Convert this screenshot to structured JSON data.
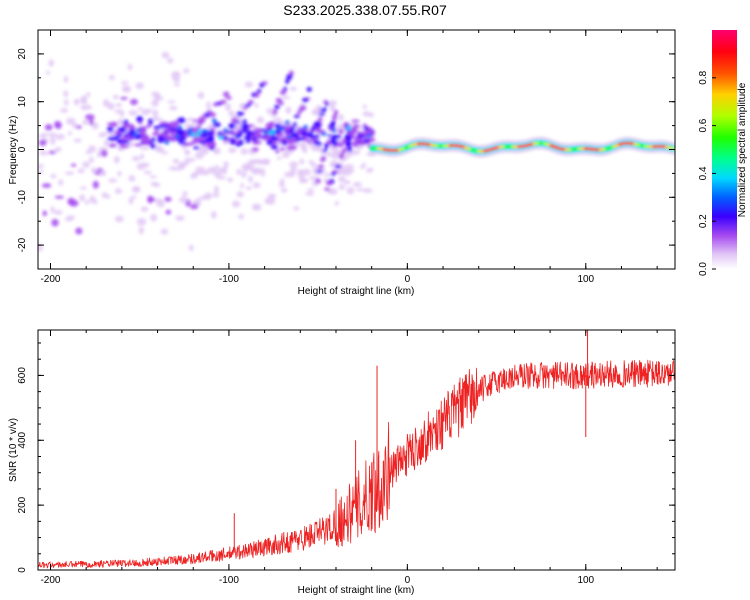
{
  "figure": {
    "title": "S233.2025.338.07.55.R07"
  },
  "colors": {
    "snr_line": "#ee2222",
    "frame": "#000000"
  },
  "chart_data": [
    {
      "type": "heatmap",
      "name": "spectrogram",
      "xlabel": "Height of straight line (km)",
      "ylabel": "Frequency (Hz)",
      "xlim": [
        -207,
        150
      ],
      "ylim": [
        -25,
        25
      ],
      "xticks": [
        -200,
        -100,
        0,
        100
      ],
      "xtick_labels": [
        "-200",
        "-100",
        "0",
        "100"
      ],
      "yticks": [
        -20,
        -10,
        0,
        10,
        20
      ],
      "ytick_labels": [
        "-20",
        "-10",
        "0",
        "10",
        "20"
      ],
      "colorbar": {
        "label": "Normalized spectral amplitude",
        "range": [
          0,
          1
        ],
        "ticks": [
          0.0,
          0.2,
          0.4,
          0.6,
          0.8
        ],
        "tick_labels": [
          "0.0",
          "0.2",
          "0.4",
          "0.6",
          "0.8"
        ]
      },
      "features": {
        "scatter_region_x": [
          -207,
          -20
        ],
        "signal_band_x": [
          -20,
          150
        ],
        "signal_band_freq": 0.5
      }
    },
    {
      "type": "line",
      "name": "snr",
      "xlabel": "Height of straight line (km)",
      "ylabel": "SNR (10 * v/v)",
      "xlim": [
        -207,
        150
      ],
      "ylim": [
        0,
        740
      ],
      "xticks": [
        -200,
        -100,
        0,
        100
      ],
      "xtick_labels": [
        "-200",
        "-100",
        "0",
        "100"
      ],
      "yticks": [
        0,
        200,
        400,
        600
      ],
      "ytick_labels": [
        "0",
        "200",
        "400",
        "600"
      ],
      "series": [
        {
          "name": "SNR",
          "trend_x": [
            -207,
            -180,
            -150,
            -120,
            -100,
            -80,
            -60,
            -45,
            -35,
            -25,
            -15,
            -5,
            5,
            15,
            25,
            35,
            45,
            55,
            65,
            80,
            100,
            120,
            150
          ],
          "trend_y": [
            15,
            18,
            22,
            35,
            50,
            70,
            95,
            125,
            160,
            210,
            270,
            330,
            380,
            430,
            480,
            530,
            570,
            590,
            600,
            600,
            600,
            605,
            605
          ],
          "spikes": [
            {
              "x": -17,
              "y": 630
            },
            {
              "x": -29,
              "y": 400
            },
            {
              "x": -40,
              "y": 250
            },
            {
              "x": -97,
              "y": 175
            },
            {
              "x": 101,
              "y": 750
            },
            {
              "x": 100,
              "y": 410
            }
          ]
        }
      ]
    }
  ]
}
